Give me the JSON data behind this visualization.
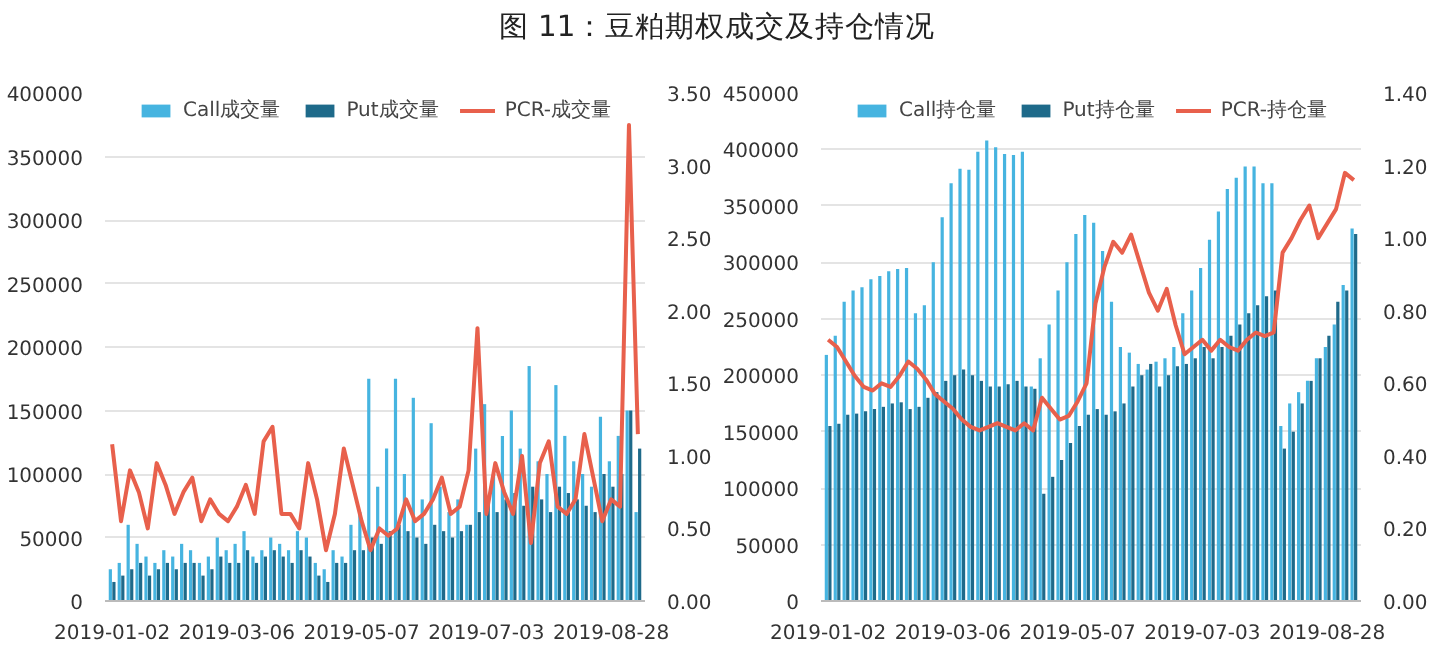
{
  "chart_data": [
    {
      "type": "bar",
      "title": "图 11：豆粕期权成交及持仓情况",
      "categories": [
        "2019-01-02",
        null,
        null,
        null,
        null,
        null,
        null,
        null,
        null,
        null,
        null,
        null,
        null,
        null,
        "2019-03-06",
        null,
        null,
        null,
        null,
        null,
        null,
        null,
        null,
        null,
        null,
        null,
        null,
        null,
        "2019-05-07",
        null,
        null,
        null,
        null,
        null,
        null,
        null,
        null,
        null,
        null,
        null,
        null,
        null,
        "2019-07-03",
        null,
        null,
        null,
        null,
        null,
        null,
        null,
        null,
        null,
        null,
        null,
        null,
        null,
        "2019-08-28",
        null,
        null,
        null
      ],
      "series": [
        {
          "name": "Call成交量",
          "color": "#46b4e0",
          "values": [
            25000,
            30000,
            60000,
            45000,
            35000,
            30000,
            40000,
            35000,
            45000,
            40000,
            30000,
            35000,
            50000,
            40000,
            45000,
            55000,
            35000,
            40000,
            50000,
            45000,
            40000,
            55000,
            50000,
            30000,
            25000,
            40000,
            35000,
            60000,
            70000,
            175000,
            90000,
            120000,
            175000,
            100000,
            160000,
            80000,
            140000,
            90000,
            70000,
            80000,
            60000,
            120000,
            155000,
            100000,
            130000,
            150000,
            120000,
            185000,
            110000,
            100000,
            170000,
            130000,
            110000,
            100000,
            90000,
            145000,
            110000,
            130000,
            150000,
            70000
          ]
        },
        {
          "name": "Put成交量",
          "color": "#1e6a8a",
          "values": [
            15000,
            20000,
            25000,
            30000,
            20000,
            25000,
            30000,
            25000,
            30000,
            30000,
            20000,
            25000,
            35000,
            30000,
            30000,
            40000,
            30000,
            35000,
            40000,
            35000,
            30000,
            40000,
            35000,
            20000,
            15000,
            30000,
            30000,
            40000,
            40000,
            50000,
            45000,
            55000,
            60000,
            55000,
            50000,
            45000,
            60000,
            55000,
            50000,
            55000,
            60000,
            70000,
            80000,
            70000,
            80000,
            85000,
            75000,
            90000,
            80000,
            70000,
            90000,
            85000,
            80000,
            75000,
            70000,
            100000,
            90000,
            100000,
            150000,
            120000
          ]
        },
        {
          "name": "PCR-成交量",
          "type": "line",
          "axis": "y2",
          "color": "#e8604c",
          "values": [
            1.08,
            0.55,
            0.9,
            0.75,
            0.5,
            0.95,
            0.8,
            0.6,
            0.75,
            0.85,
            0.55,
            0.7,
            0.6,
            0.55,
            0.65,
            0.8,
            0.6,
            1.1,
            1.2,
            0.6,
            0.6,
            0.5,
            0.95,
            0.7,
            0.35,
            0.6,
            1.05,
            0.8,
            0.55,
            0.35,
            0.5,
            0.45,
            0.5,
            0.7,
            0.55,
            0.6,
            0.7,
            0.85,
            0.6,
            0.65,
            0.9,
            1.88,
            0.6,
            0.95,
            0.75,
            0.6,
            1.0,
            0.4,
            0.95,
            1.1,
            0.65,
            0.6,
            0.7,
            1.15,
            0.85,
            0.55,
            0.7,
            0.65,
            3.28,
            1.15
          ]
        }
      ],
      "ylim": [
        0,
        400000
      ],
      "yticks": [
        0,
        50000,
        100000,
        150000,
        200000,
        250000,
        300000,
        350000,
        400000
      ],
      "y2lim": [
        0,
        3.5
      ],
      "y2ticks": [
        {
          "value": 0,
          "label": "0.00"
        },
        {
          "value": 0.5,
          "label": "0.50"
        },
        {
          "value": 1,
          "label": "1.00"
        },
        {
          "value": 1.5,
          "label": "1.50"
        },
        {
          "value": 2,
          "label": "2.00"
        },
        {
          "value": 2.5,
          "label": "2.50"
        },
        {
          "value": 3,
          "label": "3.00"
        },
        {
          "value": 3.5,
          "label": "3.50"
        }
      ],
      "grid": "y",
      "legend": "top"
    },
    {
      "type": "bar",
      "categories": [
        "2019-01-02",
        null,
        null,
        null,
        null,
        null,
        null,
        null,
        null,
        null,
        null,
        null,
        null,
        null,
        "2019-03-06",
        null,
        null,
        null,
        null,
        null,
        null,
        null,
        null,
        null,
        null,
        null,
        null,
        null,
        "2019-05-07",
        null,
        null,
        null,
        null,
        null,
        null,
        null,
        null,
        null,
        null,
        null,
        null,
        null,
        "2019-07-03",
        null,
        null,
        null,
        null,
        null,
        null,
        null,
        null,
        null,
        null,
        null,
        null,
        null,
        "2019-08-28",
        null,
        null,
        null
      ],
      "series": [
        {
          "name": "Call持仓量",
          "color": "#46b4e0",
          "values": [
            218000,
            235000,
            265000,
            275000,
            278000,
            285000,
            288000,
            292000,
            294000,
            295000,
            255000,
            262000,
            300000,
            340000,
            370000,
            383000,
            382000,
            398000,
            408000,
            402000,
            396000,
            395000,
            398000,
            190000,
            215000,
            245000,
            275000,
            300000,
            325000,
            342000,
            335000,
            310000,
            265000,
            225000,
            220000,
            210000,
            205000,
            212000,
            215000,
            225000,
            255000,
            275000,
            295000,
            320000,
            345000,
            365000,
            375000,
            385000,
            385000,
            370000,
            370000,
            155000,
            175000,
            185000,
            195000,
            215000,
            225000,
            245000,
            280000,
            330000
          ]
        },
        {
          "name": "Put持仓量",
          "color": "#1e6a8a",
          "values": [
            155000,
            157000,
            165000,
            166000,
            168000,
            170000,
            172000,
            175000,
            176000,
            170000,
            172000,
            180000,
            185000,
            195000,
            200000,
            205000,
            200000,
            195000,
            190000,
            190000,
            192000,
            195000,
            190000,
            188000,
            95000,
            110000,
            125000,
            140000,
            155000,
            165000,
            170000,
            165000,
            168000,
            175000,
            190000,
            200000,
            210000,
            190000,
            200000,
            208000,
            210000,
            215000,
            225000,
            215000,
            225000,
            235000,
            245000,
            255000,
            262000,
            270000,
            275000,
            135000,
            150000,
            175000,
            195000,
            215000,
            235000,
            265000,
            275000,
            325000
          ]
        },
        {
          "name": "PCR-持仓量",
          "type": "line",
          "axis": "y2",
          "color": "#e8604c",
          "values": [
            0.72,
            0.7,
            0.66,
            0.62,
            0.59,
            0.58,
            0.6,
            0.59,
            0.62,
            0.66,
            0.64,
            0.61,
            0.57,
            0.55,
            0.53,
            0.5,
            0.48,
            0.47,
            0.48,
            0.49,
            0.48,
            0.47,
            0.49,
            0.47,
            0.56,
            0.53,
            0.5,
            0.51,
            0.55,
            0.6,
            0.82,
            0.92,
            0.99,
            0.96,
            1.01,
            0.93,
            0.85,
            0.8,
            0.86,
            0.76,
            0.68,
            0.7,
            0.72,
            0.69,
            0.72,
            0.7,
            0.69,
            0.72,
            0.74,
            0.73,
            0.74,
            0.96,
            1.0,
            1.05,
            1.09,
            1.0,
            1.04,
            1.08,
            1.18,
            1.16
          ]
        }
      ],
      "ylim": [
        0,
        450000
      ],
      "yticks": [
        0,
        50000,
        100000,
        150000,
        200000,
        250000,
        300000,
        350000,
        400000,
        450000
      ],
      "y2lim": [
        0,
        1.4
      ],
      "y2ticks": [
        {
          "value": 0,
          "label": "0.00"
        },
        {
          "value": 0.2,
          "label": "0.20"
        },
        {
          "value": 0.4,
          "label": "0.40"
        },
        {
          "value": 0.6,
          "label": "0.60"
        },
        {
          "value": 0.8,
          "label": "0.80"
        },
        {
          "value": 1,
          "label": "1.00"
        },
        {
          "value": 1.2,
          "label": "1.20"
        },
        {
          "value": 1.4,
          "label": "1.40"
        }
      ],
      "grid": "y",
      "legend": "top"
    }
  ]
}
